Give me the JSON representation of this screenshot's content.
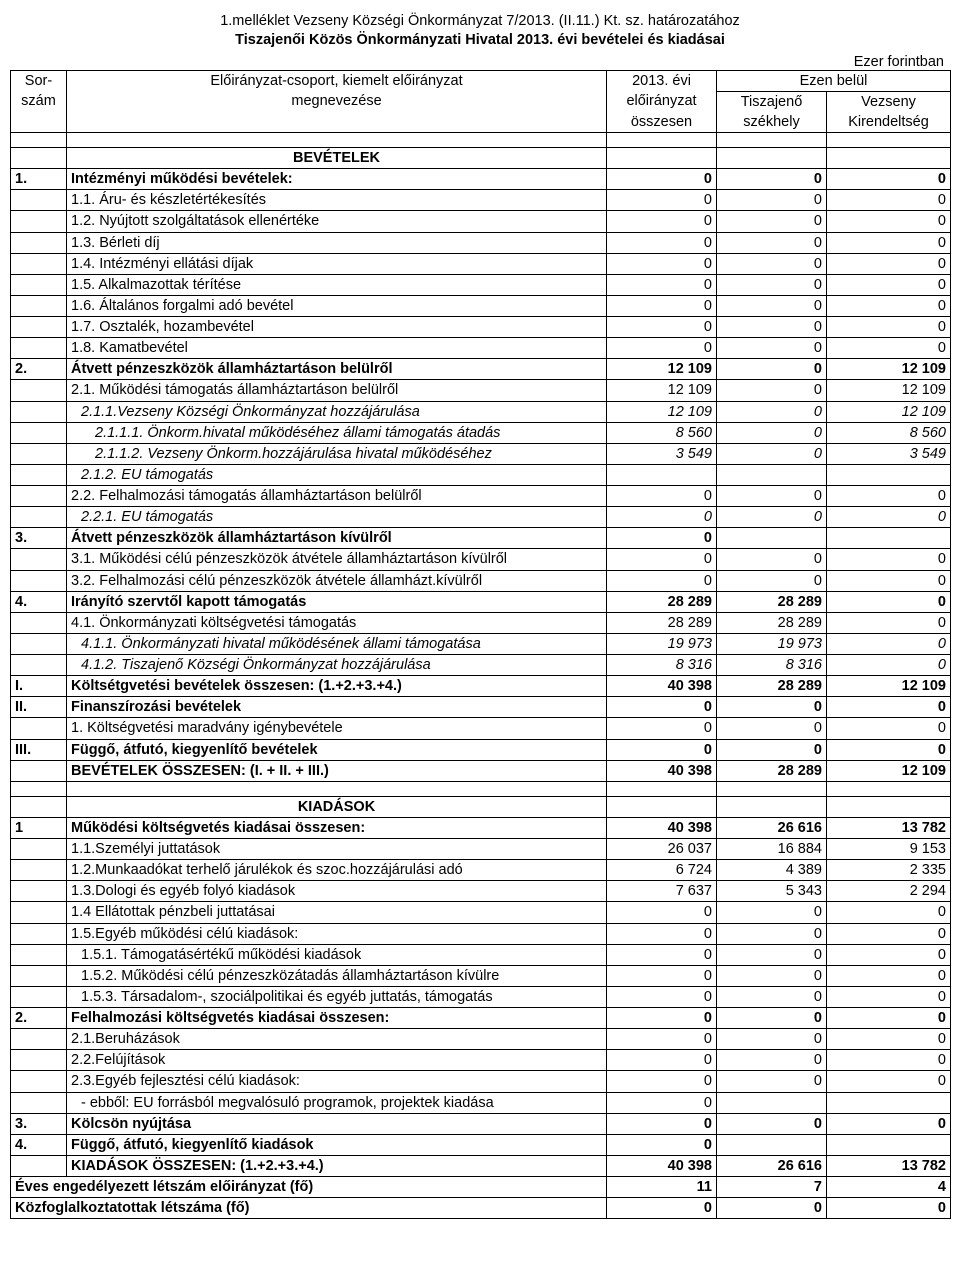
{
  "title_line1": "1.melléklet  Vezseny Községi Önkormányzat 7/2013. (II.11.) Kt. sz. határozatához",
  "title_line2": "Tiszajenői Közös Önkormányzati Hivatal 2013. évi bevételei és kiadásai",
  "unit": "Ezer forintban",
  "header": {
    "col_sor_1": "Sor-",
    "col_sor_2": "szám",
    "col_group_1": "Előirányzat-csoport, kiemelt előirányzat",
    "col_group_2": "megnevezése",
    "col_year_1": "2013. évi",
    "col_year_2": "előirányzat",
    "col_year_3": "összesen",
    "ezen": "Ezen belül",
    "col_t_1": "Tiszajenő",
    "col_t_2": "székhely",
    "col_v_1": "Vezseny",
    "col_v_2": "Kirendeltség"
  },
  "sections": {
    "bevetelek": "BEVÉTELEK",
    "kiadasok": "KIADÁSOK"
  },
  "rows": [
    {
      "sn": "1.",
      "bold": true,
      "d": "Intézményi működési bevételek:",
      "v": [
        "0",
        "0",
        "0"
      ]
    },
    {
      "sn": "",
      "d": "1.1. Áru- és készletértékesítés",
      "v": [
        "0",
        "0",
        "0"
      ]
    },
    {
      "sn": "",
      "d": "1.2. Nyújtott szolgáltatások ellenértéke",
      "v": [
        "0",
        "0",
        "0"
      ]
    },
    {
      "sn": "",
      "d": "1.3. Bérleti díj",
      "v": [
        "0",
        "0",
        "0"
      ]
    },
    {
      "sn": "",
      "d": "1.4. Intézményi ellátási díjak",
      "v": [
        "0",
        "0",
        "0"
      ]
    },
    {
      "sn": "",
      "d": "1.5. Alkalmazottak térítése",
      "v": [
        "0",
        "0",
        "0"
      ]
    },
    {
      "sn": "",
      "d": "1.6. Általános forgalmi adó bevétel",
      "v": [
        "0",
        "0",
        "0"
      ]
    },
    {
      "sn": "",
      "d": "1.7. Osztalék, hozambevétel",
      "v": [
        "0",
        "0",
        "0"
      ]
    },
    {
      "sn": "",
      "d": "1.8. Kamatbevétel",
      "v": [
        "0",
        "0",
        "0"
      ]
    },
    {
      "sn": "2.",
      "bold": true,
      "d": "Átvett pénzeszközök államháztartáson belülről",
      "v": [
        "12 109",
        "0",
        "12 109"
      ]
    },
    {
      "sn": "",
      "d": "2.1. Működési támogatás államháztartáson belülről",
      "v": [
        "12 109",
        "0",
        "12 109"
      ]
    },
    {
      "sn": "",
      "italic": true,
      "ind": 1,
      "d": "2.1.1.Vezseny Községi Önkormányzat hozzájárulása",
      "v": [
        "12 109",
        "0",
        "12 109"
      ]
    },
    {
      "sn": "",
      "italic": true,
      "ind": 2,
      "d": "2.1.1.1. Önkorm.hivatal működéséhez állami támogatás átadás",
      "v": [
        "8 560",
        "0",
        "8 560"
      ]
    },
    {
      "sn": "",
      "italic": true,
      "ind": 2,
      "d": "2.1.1.2. Vezseny Önkorm.hozzájárulása hivatal működéséhez",
      "v": [
        "3 549",
        "0",
        "3 549"
      ]
    },
    {
      "sn": "",
      "italic": true,
      "ind": 1,
      "d": "2.1.2. EU támogatás",
      "v": [
        "",
        "",
        ""
      ]
    },
    {
      "sn": "",
      "d": "2.2. Felhalmozási támogatás államháztartáson belülről",
      "v": [
        "0",
        "0",
        "0"
      ]
    },
    {
      "sn": "",
      "italic": true,
      "ind": 1,
      "d": "2.2.1. EU támogatás",
      "v": [
        "0",
        "0",
        "0"
      ]
    },
    {
      "sn": "3.",
      "bold": true,
      "d": "Átvett pénzeszközök államháztartáson kívülről",
      "v": [
        "0",
        "",
        ""
      ]
    },
    {
      "sn": "",
      "d": "3.1. Működési célú pénzeszközök átvétele államháztartáson kívülről",
      "v": [
        "0",
        "0",
        "0"
      ]
    },
    {
      "sn": "",
      "d": "3.2. Felhalmozási célú pénzeszközök átvétele államházt.kívülről",
      "v": [
        "0",
        "0",
        "0"
      ]
    },
    {
      "sn": "4.",
      "bold": true,
      "d": "Irányító szervtől kapott támogatás",
      "v": [
        "28 289",
        "28 289",
        "0"
      ]
    },
    {
      "sn": "",
      "d": "4.1. Önkormányzati költségvetési támogatás",
      "v": [
        "28 289",
        "28 289",
        "0"
      ]
    },
    {
      "sn": "",
      "italic": true,
      "ind": 1,
      "d": "4.1.1. Önkormányzati hivatal működésének állami támogatása",
      "v": [
        "19 973",
        "19 973",
        "0"
      ]
    },
    {
      "sn": "",
      "italic": true,
      "ind": 1,
      "d": "4.1.2. Tiszajenő Községi Önkormányzat hozzájárulása",
      "v": [
        "8 316",
        "8 316",
        "0"
      ]
    },
    {
      "sn": "I.",
      "bold": true,
      "d": "Költsétgvetési bevételek összesen: (1.+2.+3.+4.)",
      "v": [
        "40 398",
        "28 289",
        "12 109"
      ]
    },
    {
      "sn": "II.",
      "bold": true,
      "d": "Finanszírozási bevételek",
      "v": [
        "0",
        "0",
        "0"
      ]
    },
    {
      "sn": "",
      "d": "1. Költségvetési maradvány igénybevétele",
      "v": [
        "0",
        "0",
        "0"
      ]
    },
    {
      "sn": "III.",
      "bold": true,
      "d": "Függő, átfutó, kiegyenlítő bevételek",
      "v": [
        "0",
        "0",
        "0"
      ]
    },
    {
      "sn": "",
      "bold": true,
      "d": "BEVÉTELEK ÖSSZESEN:  (I. + II. + III.)",
      "v": [
        "40 398",
        "28 289",
        "12 109"
      ]
    }
  ],
  "rows2": [
    {
      "sn": "1",
      "bold": true,
      "d": "Működési költségvetés kiadásai összesen:",
      "v": [
        "40 398",
        "26 616",
        "13 782"
      ]
    },
    {
      "sn": "",
      "d": "1.1.Személyi juttatások",
      "v": [
        "26 037",
        "16 884",
        "9 153"
      ]
    },
    {
      "sn": "",
      "d": "1.2.Munkaadókat terhelő járulékok és szoc.hozzájárulási adó",
      "v": [
        "6 724",
        "4 389",
        "2 335"
      ]
    },
    {
      "sn": "",
      "d": "1.3.Dologi és egyéb folyó kiadások",
      "v": [
        "7 637",
        "5 343",
        "2 294"
      ]
    },
    {
      "sn": "",
      "d": "1.4 Ellátottak pénzbeli juttatásai",
      "v": [
        "0",
        "0",
        "0"
      ]
    },
    {
      "sn": "",
      "d": "1.5.Egyéb működési célú kiadások:",
      "v": [
        "0",
        "0",
        "0"
      ]
    },
    {
      "sn": "",
      "ind": 1,
      "d": "1.5.1. Támogatásértékű működési kiadások",
      "v": [
        "0",
        "0",
        "0"
      ]
    },
    {
      "sn": "",
      "ind": 1,
      "d": "1.5.2. Működési célú pénzeszközátadás államháztartáson kívülre",
      "v": [
        "0",
        "0",
        "0"
      ]
    },
    {
      "sn": "",
      "ind": 1,
      "d": "1.5.3. Társadalom-, szociálpolitikai és egyéb juttatás, támogatás",
      "v": [
        "0",
        "0",
        "0"
      ]
    },
    {
      "sn": "2.",
      "bold": true,
      "d": "Felhalmozási költségvetés kiadásai összesen:",
      "v": [
        "0",
        "0",
        "0"
      ]
    },
    {
      "sn": "",
      "d": "2.1.Beruházások",
      "v": [
        "0",
        "0",
        "0"
      ]
    },
    {
      "sn": "",
      "d": "2.2.Felújítások",
      "v": [
        "0",
        "0",
        "0"
      ]
    },
    {
      "sn": "",
      "d": "2.3.Egyéb fejlesztési célú kiadások:",
      "v": [
        "0",
        "0",
        "0"
      ]
    },
    {
      "sn": "",
      "ind": 1,
      "d": "- ebből: EU forrásból megvalósuló programok, projektek kiadása",
      "v": [
        "0",
        "",
        ""
      ]
    },
    {
      "sn": "3.",
      "bold": true,
      "d": "Kölcsön nyújtása",
      "v": [
        "0",
        "0",
        "0"
      ]
    },
    {
      "sn": "4.",
      "bold": true,
      "d": "Függő, átfutó, kiegyenlítő kiadások",
      "v": [
        "0",
        "",
        ""
      ]
    },
    {
      "sn": "",
      "bold": true,
      "d": "KIADÁSOK ÖSSZESEN: (1.+2.+3.+4.)",
      "v": [
        "40 398",
        "26 616",
        "13 782"
      ]
    }
  ],
  "footer": [
    {
      "d": "Éves engedélyezett létszám előirányzat (fő)",
      "bold": true,
      "v": [
        "11",
        "7",
        "4"
      ]
    },
    {
      "d": "Közfoglalkoztatottak létszáma (fő)",
      "bold": true,
      "v": [
        "0",
        "0",
        "0"
      ]
    }
  ]
}
